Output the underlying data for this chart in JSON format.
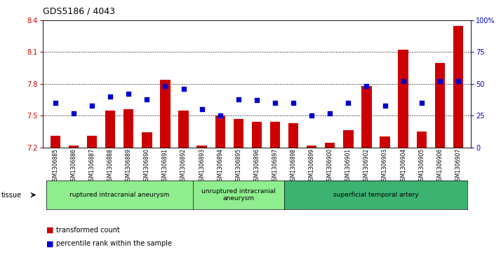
{
  "title": "GDS5186 / 4043",
  "samples": [
    "GSM1306885",
    "GSM1306886",
    "GSM1306887",
    "GSM1306888",
    "GSM1306889",
    "GSM1306890",
    "GSM1306891",
    "GSM1306892",
    "GSM1306893",
    "GSM1306894",
    "GSM1306895",
    "GSM1306896",
    "GSM1306897",
    "GSM1306898",
    "GSM1306899",
    "GSM1306900",
    "GSM1306901",
    "GSM1306902",
    "GSM1306903",
    "GSM1306904",
    "GSM1306905",
    "GSM1306906",
    "GSM1306907"
  ],
  "bar_values": [
    7.31,
    7.22,
    7.31,
    7.55,
    7.56,
    7.34,
    7.84,
    7.55,
    7.22,
    7.5,
    7.47,
    7.44,
    7.44,
    7.43,
    7.22,
    7.24,
    7.36,
    7.78,
    7.3,
    8.12,
    7.35,
    8.0,
    8.35
  ],
  "percentile_values": [
    35,
    27,
    33,
    40,
    42,
    38,
    48,
    46,
    30,
    25,
    38,
    37,
    35,
    35,
    25,
    27,
    35,
    48,
    33,
    52,
    35,
    52,
    52
  ],
  "ylim_left": [
    7.2,
    8.4
  ],
  "ylim_right": [
    0,
    100
  ],
  "yticks_left": [
    7.2,
    7.5,
    7.8,
    8.1,
    8.4
  ],
  "yticks_right": [
    0,
    25,
    50,
    75,
    100
  ],
  "bar_color": "#CC0000",
  "dot_color": "#0000CC",
  "bar_bottom": 7.2,
  "groups": [
    {
      "label": "ruptured intracranial aneurysm",
      "start": 0,
      "end": 8,
      "color": "#90EE90"
    },
    {
      "label": "unruptured intracranial\naneurysm",
      "start": 8,
      "end": 13,
      "color": "#90EE90"
    },
    {
      "label": "superficial temporal artery",
      "start": 13,
      "end": 23,
      "color": "#3CB371"
    }
  ],
  "tissue_label": "tissue",
  "legend_bar_label": "transformed count",
  "legend_dot_label": "percentile rank within the sample",
  "background_color": "#FFFFFF",
  "plot_bg_color": "#FFFFFF",
  "right_axis_color": "#0000CC",
  "left_axis_color": "#CC0000"
}
